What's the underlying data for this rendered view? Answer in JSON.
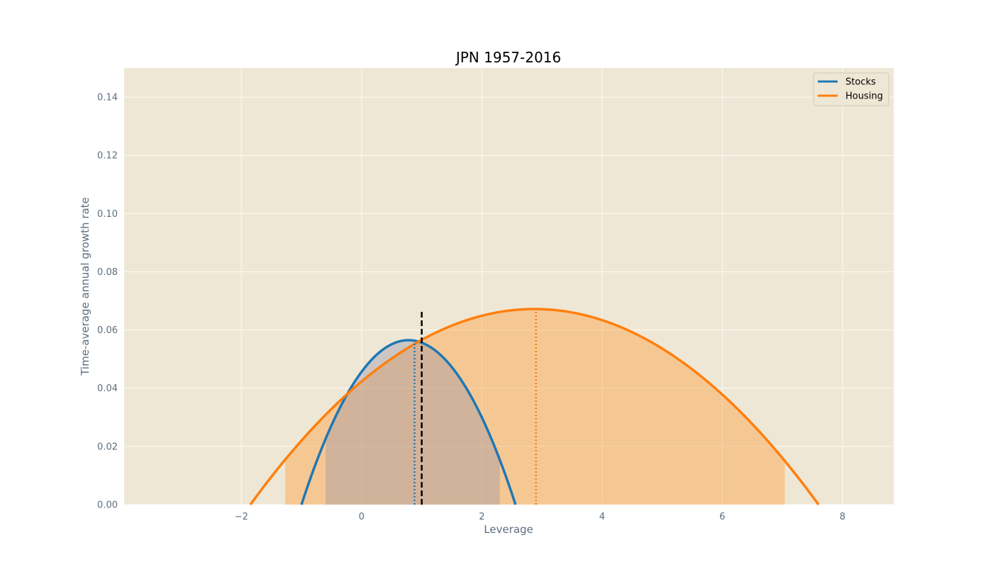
{
  "chart_data": {
    "type": "line",
    "title": "JPN 1957-2016",
    "xlabel": "Leverage",
    "ylabel": "Time-average annual growth rate",
    "xlim": [
      -3.95,
      8.85
    ],
    "ylim": [
      0.0,
      0.15
    ],
    "xticks": [
      -2,
      0,
      2,
      4,
      6,
      8
    ],
    "xtick_labels": [
      "−2",
      "0",
      "2",
      "4",
      "6",
      "8"
    ],
    "yticks": [
      0.0,
      0.02,
      0.04,
      0.06,
      0.08,
      0.1,
      0.12,
      0.14
    ],
    "ytick_labels": [
      "0.00",
      "0.02",
      "0.04",
      "0.06",
      "0.08",
      "0.10",
      "0.12",
      "0.14"
    ],
    "grid": true,
    "legend_position": "top-right",
    "background": "#efe7d5",
    "series": [
      {
        "name": "Stocks",
        "color": "#1f77b4",
        "x_at_zero": [
          -1.0,
          2.56
        ],
        "peak": {
          "x": 0.88,
          "y": 0.0565
        },
        "shaded_interval": [
          -0.6,
          2.3
        ],
        "optimal_leverage": 0.88
      },
      {
        "name": "Housing",
        "color": "#ff7f0e",
        "x_at_zero": [
          -1.85,
          7.6
        ],
        "peak": {
          "x": 2.9,
          "y": 0.0672
        },
        "shaded_interval": [
          -1.27,
          7.04
        ],
        "optimal_leverage": 2.9
      }
    ],
    "reference_line": {
      "x": 1.0,
      "y_max": 0.0672,
      "color": "#000000",
      "style": "dashed"
    }
  }
}
